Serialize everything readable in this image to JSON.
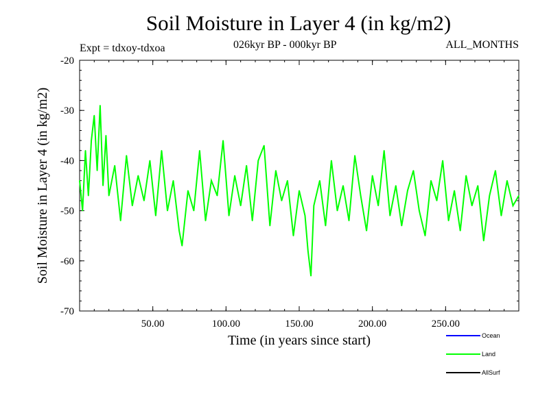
{
  "header": {
    "title": "Soil Moisture in Layer 4 (in kg/m2)",
    "subtitle": "026kyr BP - 000kyr BP",
    "experiment": "Expt = tdxoy-tdxoa",
    "months": "ALL_MONTHS"
  },
  "chart_data": {
    "type": "line",
    "title": "Soil Moisture in Layer 4 (in kg/m2)",
    "xlabel": "Time (in years since start)",
    "ylabel": "Soil Moisture in Layer 4 (in kg/m2)",
    "xlim": [
      0,
      300
    ],
    "ylim": [
      -70,
      -20
    ],
    "x_ticks": [
      50,
      100,
      150,
      200,
      250
    ],
    "x_tick_labels": [
      "50.00",
      "100.00",
      "150.00",
      "200.00",
      "250.00"
    ],
    "y_ticks": [
      -20,
      -30,
      -40,
      -50,
      -60,
      -70
    ],
    "y_tick_labels": [
      "-20",
      "-30",
      "-40",
      "-50",
      "-60",
      "-70"
    ],
    "grid": false,
    "legend_position": "bottom-right, below plot",
    "series": [
      {
        "name": "Ocean",
        "color": "#0000ff",
        "x": [],
        "y": []
      },
      {
        "name": "Land",
        "color": "#00ff00",
        "x": [
          0,
          2,
          4,
          6,
          8,
          10,
          12,
          14,
          16,
          18,
          20,
          24,
          28,
          32,
          36,
          40,
          44,
          48,
          52,
          56,
          60,
          64,
          68,
          70,
          74,
          78,
          82,
          86,
          90,
          94,
          98,
          102,
          106,
          110,
          114,
          118,
          122,
          126,
          130,
          134,
          138,
          142,
          146,
          150,
          154,
          156,
          158,
          160,
          164,
          168,
          172,
          176,
          180,
          184,
          188,
          192,
          196,
          200,
          204,
          208,
          212,
          216,
          220,
          224,
          228,
          232,
          236,
          240,
          244,
          248,
          252,
          256,
          260,
          264,
          268,
          272,
          276,
          280,
          284,
          288,
          292,
          296,
          300
        ],
        "y": [
          -44,
          -50,
          -38,
          -47,
          -36,
          -31,
          -42,
          -29,
          -45,
          -35,
          -47,
          -41,
          -52,
          -39,
          -49,
          -43,
          -48,
          -40,
          -51,
          -38,
          -50,
          -44,
          -54,
          -57,
          -46,
          -50,
          -38,
          -52,
          -44,
          -47,
          -36,
          -51,
          -43,
          -49,
          -41,
          -52,
          -40,
          -37,
          -53,
          -42,
          -48,
          -44,
          -55,
          -46,
          -51,
          -58,
          -63,
          -49,
          -44,
          -53,
          -40,
          -50,
          -45,
          -52,
          -39,
          -47,
          -54,
          -43,
          -49,
          -38,
          -51,
          -45,
          -53,
          -46,
          -42,
          -50,
          -55,
          -44,
          -48,
          -40,
          -52,
          -46,
          -54,
          -43,
          -49,
          -45,
          -56,
          -47,
          -42,
          -51,
          -44,
          -49,
          -47
        ]
      },
      {
        "name": "AllSurf",
        "color": "#000000",
        "x": [],
        "y": []
      }
    ]
  }
}
